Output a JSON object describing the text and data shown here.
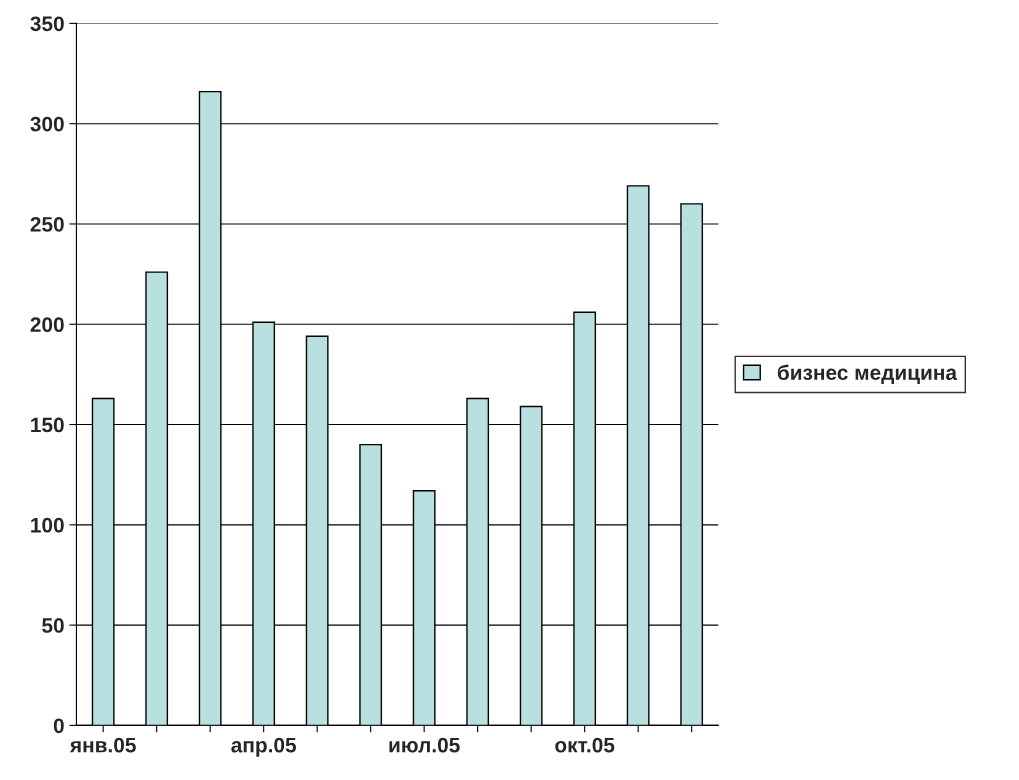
{
  "chart_data": {
    "type": "bar",
    "categories": [
      "янв.05",
      null,
      null,
      "апр.05",
      null,
      null,
      "июл.05",
      null,
      null,
      "окт.05",
      null,
      null
    ],
    "series": [
      {
        "name": "бизнес медицина",
        "color": "#b8e0e0",
        "values": [
          163,
          226,
          316,
          201,
          194,
          140,
          117,
          163,
          159,
          206,
          269,
          260
        ]
      }
    ],
    "ylim": [
      0,
      350
    ],
    "yticks": [
      0,
      50,
      100,
      150,
      200,
      250,
      300,
      350
    ],
    "grid": "y",
    "legend": "right"
  }
}
